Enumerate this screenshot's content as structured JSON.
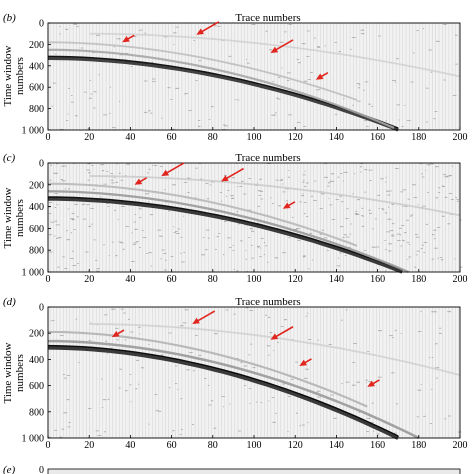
{
  "panels": [
    {
      "id": "b",
      "label": "(b)",
      "top_label": "Trace numbers",
      "y_label_line1": "Time window",
      "y_label_line2": "numbers",
      "x_ticks": [
        "0",
        "20",
        "40",
        "60",
        "80",
        "100",
        "120",
        "140",
        "160",
        "180",
        "200"
      ],
      "y_ticks": [
        "0",
        "200",
        "400",
        "600",
        "800",
        "1 000"
      ],
      "noise": 0.12,
      "events": [
        {
          "x0": 0,
          "x1": 170,
          "t0": 330,
          "t1": 1000,
          "w": 20,
          "c": 0.82
        },
        {
          "x0": 0,
          "x1": 168,
          "t0": 250,
          "t1": 980,
          "w": 9,
          "c": 0.35
        },
        {
          "x0": 0,
          "x1": 150,
          "t0": 180,
          "t1": 720,
          "w": 6,
          "c": 0.25
        },
        {
          "x0": 20,
          "x1": 200,
          "t0": 100,
          "t1": 500,
          "w": 5,
          "c": 0.18
        }
      ],
      "arrows": [
        {
          "x": 36,
          "t": 180,
          "len": "short"
        },
        {
          "x": 72,
          "t": 110,
          "len": "long"
        },
        {
          "x": 108,
          "t": 280,
          "len": "long"
        },
        {
          "x": 130,
          "t": 530,
          "len": "short"
        }
      ]
    },
    {
      "id": "c",
      "label": "(c)",
      "top_label": "Trace numbers",
      "y_label_line1": "Time window",
      "y_label_line2": "numbers",
      "x_ticks": [
        "0",
        "20",
        "40",
        "60",
        "80",
        "100",
        "120",
        "140",
        "160",
        "180",
        "200"
      ],
      "y_ticks": [
        "0",
        "200",
        "400",
        "600",
        "800",
        "1 000"
      ],
      "noise": 0.32,
      "events": [
        {
          "x0": 0,
          "x1": 172,
          "t0": 330,
          "t1": 1000,
          "w": 22,
          "c": 0.85
        },
        {
          "x0": 0,
          "x1": 175,
          "t0": 260,
          "t1": 1000,
          "w": 10,
          "c": 0.4
        },
        {
          "x0": 0,
          "x1": 150,
          "t0": 190,
          "t1": 760,
          "w": 8,
          "c": 0.28
        },
        {
          "x0": 20,
          "x1": 200,
          "t0": 120,
          "t1": 480,
          "w": 6,
          "c": 0.2
        }
      ],
      "arrows": [
        {
          "x": 42,
          "t": 200,
          "len": "short"
        },
        {
          "x": 55,
          "t": 120,
          "len": "long"
        },
        {
          "x": 84,
          "t": 170,
          "len": "long"
        },
        {
          "x": 114,
          "t": 420,
          "len": "short"
        }
      ]
    },
    {
      "id": "d",
      "label": "(d)",
      "top_label": "Trace numbers",
      "y_label_line1": "Time window",
      "y_label_line2": "numbers",
      "x_ticks": [
        "0",
        "20",
        "40",
        "60",
        "80",
        "100",
        "120",
        "140",
        "160",
        "180",
        "200"
      ],
      "y_ticks": [
        "0",
        "200",
        "400",
        "600",
        "800",
        "1 000"
      ],
      "noise": 0.14,
      "events": [
        {
          "x0": 0,
          "x1": 170,
          "t0": 310,
          "t1": 1000,
          "w": 22,
          "c": 0.85
        },
        {
          "x0": 0,
          "x1": 180,
          "t0": 260,
          "t1": 1000,
          "w": 10,
          "c": 0.4
        },
        {
          "x0": 0,
          "x1": 155,
          "t0": 190,
          "t1": 760,
          "w": 7,
          "c": 0.3
        },
        {
          "x0": 20,
          "x1": 200,
          "t0": 130,
          "t1": 520,
          "w": 5,
          "c": 0.18
        }
      ],
      "arrows": [
        {
          "x": 31,
          "t": 230,
          "len": "short"
        },
        {
          "x": 70,
          "t": 130,
          "len": "long"
        },
        {
          "x": 108,
          "t": 250,
          "len": "long"
        },
        {
          "x": 122,
          "t": 450,
          "len": "short"
        },
        {
          "x": 155,
          "t": 610,
          "len": "short"
        }
      ]
    },
    {
      "id": "e",
      "label": "(e)",
      "y_ticks": [
        "0"
      ]
    }
  ],
  "colors": {
    "arrow": "#e0261f",
    "ink": "#000000",
    "frame": "#000000"
  }
}
